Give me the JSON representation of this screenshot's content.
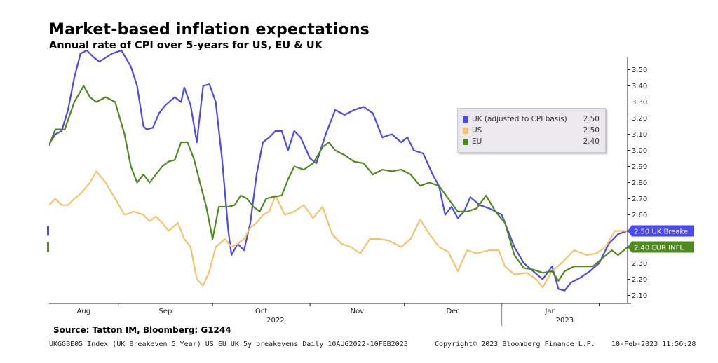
{
  "header": {
    "title": "Market-based inflation expectations",
    "subtitle": "Annual rate of CPI over 5-years for US, EU & UK"
  },
  "legend": {
    "items": [
      {
        "name": "UK (adjusted to CPI basis)",
        "value": "2.50",
        "color": "#4a4aee"
      },
      {
        "name": "US",
        "value": "2.50",
        "color": "#f5c26f"
      },
      {
        "name": "EU",
        "value": "2.40",
        "color": "#4e8a1e"
      }
    ]
  },
  "footer": {
    "source": "Source: Tatton IM, Bloomberg: G1244",
    "ticker": "UKGGBE05 Index (UK Breakeven 5 Year) US EU UK 5y breakevens  Daily 10AUG2022-10FEB2023",
    "copyright": "Copyright© 2023 Bloomberg Finance L.P.",
    "timestamp": "10-Feb-2023 11:56:28"
  },
  "chart_data": {
    "type": "line",
    "title": "Market-based inflation expectations",
    "subtitle": "Annual rate of CPI over 5-years for US, EU & UK",
    "x_range": [
      "2022-08-10",
      "2023-02-10"
    ],
    "x_month_labels": [
      "Aug",
      "Sep",
      "Oct",
      "Nov",
      "Dec",
      "Jan"
    ],
    "x_year_labels": [
      "2022",
      "2023"
    ],
    "ylim": [
      2.05,
      3.55
    ],
    "y_ticks": [
      "3.50",
      "3.40",
      "3.30",
      "3.20",
      "3.10",
      "3.00",
      "2.90",
      "2.80",
      "2.70",
      "2.60",
      "2.50",
      "2.40",
      "2.30",
      "2.20",
      "2.10"
    ],
    "y_axis_side": "right",
    "grid": false,
    "legend_position": "top-right",
    "last_value_tags": [
      {
        "text": "2.50 UK Breake",
        "color": "#4a4aee",
        "value": 2.5
      },
      {
        "text": "2.40 EUR INFL",
        "color": "#4e8a1e",
        "value": 2.4
      }
    ],
    "series": [
      {
        "name": "UK (adjusted to CPI basis)",
        "color": "#4a4aee",
        "points": [
          [
            "2022-08-10",
            3.04
          ],
          [
            "2022-08-12",
            3.1
          ],
          [
            "2022-08-14",
            3.12
          ],
          [
            "2022-08-16",
            3.25
          ],
          [
            "2022-08-18",
            3.45
          ],
          [
            "2022-08-20",
            3.6
          ],
          [
            "2022-08-22",
            3.62
          ],
          [
            "2022-08-24",
            3.58
          ],
          [
            "2022-08-26",
            3.55
          ],
          [
            "2022-08-30",
            3.6
          ],
          [
            "2022-09-02",
            3.62
          ],
          [
            "2022-09-05",
            3.52
          ],
          [
            "2022-09-07",
            3.4
          ],
          [
            "2022-09-09",
            3.15
          ],
          [
            "2022-09-10",
            3.13
          ],
          [
            "2022-09-12",
            3.14
          ],
          [
            "2022-09-14",
            3.23
          ],
          [
            "2022-09-16",
            3.28
          ],
          [
            "2022-09-19",
            3.33
          ],
          [
            "2022-09-21",
            3.3
          ],
          [
            "2022-09-22",
            3.39
          ],
          [
            "2022-09-24",
            3.28
          ],
          [
            "2022-09-26",
            3.05
          ],
          [
            "2022-09-28",
            3.4
          ],
          [
            "2022-09-30",
            3.41
          ],
          [
            "2022-10-02",
            3.3
          ],
          [
            "2022-10-04",
            2.95
          ],
          [
            "2022-10-06",
            2.5
          ],
          [
            "2022-10-07",
            2.35
          ],
          [
            "2022-10-09",
            2.42
          ],
          [
            "2022-10-11",
            2.38
          ],
          [
            "2022-10-13",
            2.55
          ],
          [
            "2022-10-15",
            2.85
          ],
          [
            "2022-10-17",
            3.05
          ],
          [
            "2022-10-19",
            3.08
          ],
          [
            "2022-10-21",
            3.12
          ],
          [
            "2022-10-23",
            3.12
          ],
          [
            "2022-10-25",
            3.0
          ],
          [
            "2022-10-27",
            3.12
          ],
          [
            "2022-10-29",
            3.08
          ],
          [
            "2022-11-01",
            2.95
          ],
          [
            "2022-11-03",
            2.92
          ],
          [
            "2022-11-06",
            3.1
          ],
          [
            "2022-11-09",
            3.25
          ],
          [
            "2022-11-12",
            3.22
          ],
          [
            "2022-11-15",
            3.25
          ],
          [
            "2022-11-18",
            3.27
          ],
          [
            "2022-11-21",
            3.23
          ],
          [
            "2022-11-24",
            3.08
          ],
          [
            "2022-11-27",
            3.1
          ],
          [
            "2022-11-30",
            3.05
          ],
          [
            "2022-12-02",
            3.08
          ],
          [
            "2022-12-04",
            3.0
          ],
          [
            "2022-12-07",
            2.98
          ],
          [
            "2022-12-10",
            2.85
          ],
          [
            "2022-12-12",
            2.78
          ],
          [
            "2022-12-14",
            2.6
          ],
          [
            "2022-12-16",
            2.65
          ],
          [
            "2022-12-18",
            2.58
          ],
          [
            "2022-12-20",
            2.62
          ],
          [
            "2022-12-22",
            2.71
          ],
          [
            "2022-12-25",
            2.66
          ],
          [
            "2022-12-28",
            2.64
          ],
          [
            "2023-01-01",
            2.6
          ],
          [
            "2023-01-03",
            2.5
          ],
          [
            "2023-01-05",
            2.4
          ],
          [
            "2023-01-08",
            2.3
          ],
          [
            "2023-01-11",
            2.25
          ],
          [
            "2023-01-14",
            2.2
          ],
          [
            "2023-01-17",
            2.28
          ],
          [
            "2023-01-19",
            2.14
          ],
          [
            "2023-01-21",
            2.13
          ],
          [
            "2023-01-23",
            2.18
          ],
          [
            "2023-01-26",
            2.21
          ],
          [
            "2023-01-29",
            2.25
          ],
          [
            "2023-02-01",
            2.3
          ],
          [
            "2023-02-04",
            2.42
          ],
          [
            "2023-02-07",
            2.48
          ],
          [
            "2023-02-10",
            2.5
          ]
        ]
      },
      {
        "name": "US",
        "color": "#f5c26f",
        "points": [
          [
            "2022-08-10",
            2.66
          ],
          [
            "2022-08-12",
            2.7
          ],
          [
            "2022-08-14",
            2.66
          ],
          [
            "2022-08-16",
            2.66
          ],
          [
            "2022-08-18",
            2.7
          ],
          [
            "2022-08-20",
            2.73
          ],
          [
            "2022-08-23",
            2.8
          ],
          [
            "2022-08-25",
            2.87
          ],
          [
            "2022-08-28",
            2.8
          ],
          [
            "2022-08-31",
            2.7
          ],
          [
            "2022-09-03",
            2.6
          ],
          [
            "2022-09-06",
            2.62
          ],
          [
            "2022-09-09",
            2.6
          ],
          [
            "2022-09-11",
            2.56
          ],
          [
            "2022-09-13",
            2.59
          ],
          [
            "2022-09-15",
            2.55
          ],
          [
            "2022-09-17",
            2.5
          ],
          [
            "2022-09-20",
            2.55
          ],
          [
            "2022-09-22",
            2.45
          ],
          [
            "2022-09-24",
            2.4
          ],
          [
            "2022-09-26",
            2.2
          ],
          [
            "2022-09-28",
            2.16
          ],
          [
            "2022-09-30",
            2.25
          ],
          [
            "2022-10-02",
            2.4
          ],
          [
            "2022-10-05",
            2.45
          ],
          [
            "2022-10-07",
            2.4
          ],
          [
            "2022-10-09",
            2.42
          ],
          [
            "2022-10-11",
            2.45
          ],
          [
            "2022-10-13",
            2.52
          ],
          [
            "2022-10-15",
            2.55
          ],
          [
            "2022-10-17",
            2.6
          ],
          [
            "2022-10-19",
            2.62
          ],
          [
            "2022-10-21",
            2.72
          ],
          [
            "2022-10-24",
            2.6
          ],
          [
            "2022-10-27",
            2.62
          ],
          [
            "2022-10-30",
            2.66
          ],
          [
            "2022-11-02",
            2.58
          ],
          [
            "2022-11-05",
            2.65
          ],
          [
            "2022-11-08",
            2.48
          ],
          [
            "2022-11-11",
            2.42
          ],
          [
            "2022-11-14",
            2.4
          ],
          [
            "2022-11-17",
            2.36
          ],
          [
            "2022-11-20",
            2.45
          ],
          [
            "2022-11-23",
            2.45
          ],
          [
            "2022-11-26",
            2.44
          ],
          [
            "2022-11-30",
            2.4
          ],
          [
            "2022-12-03",
            2.45
          ],
          [
            "2022-12-06",
            2.57
          ],
          [
            "2022-12-09",
            2.48
          ],
          [
            "2022-12-12",
            2.4
          ],
          [
            "2022-12-15",
            2.37
          ],
          [
            "2022-12-18",
            2.25
          ],
          [
            "2022-12-21",
            2.38
          ],
          [
            "2022-12-24",
            2.36
          ],
          [
            "2022-12-28",
            2.38
          ],
          [
            "2022-12-31",
            2.38
          ],
          [
            "2023-01-02",
            2.28
          ],
          [
            "2023-01-05",
            2.23
          ],
          [
            "2023-01-09",
            2.24
          ],
          [
            "2023-01-12",
            2.2
          ],
          [
            "2023-01-14",
            2.15
          ],
          [
            "2023-01-17",
            2.25
          ],
          [
            "2023-01-20",
            2.3
          ],
          [
            "2023-01-24",
            2.38
          ],
          [
            "2023-01-28",
            2.35
          ],
          [
            "2023-01-31",
            2.36
          ],
          [
            "2023-02-03",
            2.4
          ],
          [
            "2023-02-06",
            2.5
          ],
          [
            "2023-02-10",
            2.5
          ]
        ]
      },
      {
        "name": "EU",
        "color": "#4e8a1e",
        "points": [
          [
            "2022-08-10",
            3.03
          ],
          [
            "2022-08-12",
            3.13
          ],
          [
            "2022-08-15",
            3.13
          ],
          [
            "2022-08-18",
            3.3
          ],
          [
            "2022-08-21",
            3.4
          ],
          [
            "2022-08-23",
            3.33
          ],
          [
            "2022-08-25",
            3.3
          ],
          [
            "2022-08-28",
            3.33
          ],
          [
            "2022-08-31",
            3.3
          ],
          [
            "2022-09-03",
            3.1
          ],
          [
            "2022-09-05",
            2.9
          ],
          [
            "2022-09-07",
            2.8
          ],
          [
            "2022-09-09",
            2.85
          ],
          [
            "2022-09-11",
            2.8
          ],
          [
            "2022-09-13",
            2.85
          ],
          [
            "2022-09-15",
            2.9
          ],
          [
            "2022-09-17",
            2.93
          ],
          [
            "2022-09-19",
            2.94
          ],
          [
            "2022-09-21",
            3.05
          ],
          [
            "2022-09-23",
            3.05
          ],
          [
            "2022-09-25",
            2.95
          ],
          [
            "2022-09-27",
            2.8
          ],
          [
            "2022-09-29",
            2.65
          ],
          [
            "2022-10-01",
            2.45
          ],
          [
            "2022-10-03",
            2.65
          ],
          [
            "2022-10-06",
            2.65
          ],
          [
            "2022-10-08",
            2.66
          ],
          [
            "2022-10-10",
            2.72
          ],
          [
            "2022-10-12",
            2.7
          ],
          [
            "2022-10-14",
            2.65
          ],
          [
            "2022-10-16",
            2.62
          ],
          [
            "2022-10-18",
            2.7
          ],
          [
            "2022-10-20",
            2.71
          ],
          [
            "2022-10-23",
            2.72
          ],
          [
            "2022-10-25",
            2.82
          ],
          [
            "2022-10-27",
            2.9
          ],
          [
            "2022-10-30",
            2.88
          ],
          [
            "2022-11-02",
            2.92
          ],
          [
            "2022-11-05",
            3.02
          ],
          [
            "2022-11-07",
            3.05
          ],
          [
            "2022-11-09",
            3.0
          ],
          [
            "2022-11-12",
            2.97
          ],
          [
            "2022-11-15",
            2.93
          ],
          [
            "2022-11-18",
            2.92
          ],
          [
            "2022-11-21",
            2.85
          ],
          [
            "2022-11-24",
            2.88
          ],
          [
            "2022-11-27",
            2.87
          ],
          [
            "2022-11-30",
            2.88
          ],
          [
            "2022-12-03",
            2.85
          ],
          [
            "2022-12-06",
            2.78
          ],
          [
            "2022-12-09",
            2.8
          ],
          [
            "2022-12-12",
            2.78
          ],
          [
            "2022-12-15",
            2.7
          ],
          [
            "2022-12-18",
            2.62
          ],
          [
            "2022-12-21",
            2.62
          ],
          [
            "2022-12-24",
            2.64
          ],
          [
            "2022-12-27",
            2.72
          ],
          [
            "2022-12-30",
            2.62
          ],
          [
            "2023-01-02",
            2.55
          ],
          [
            "2023-01-05",
            2.35
          ],
          [
            "2023-01-08",
            2.27
          ],
          [
            "2023-01-11",
            2.26
          ],
          [
            "2023-01-14",
            2.24
          ],
          [
            "2023-01-17",
            2.25
          ],
          [
            "2023-01-19",
            2.19
          ],
          [
            "2023-01-21",
            2.25
          ],
          [
            "2023-01-24",
            2.28
          ],
          [
            "2023-01-27",
            2.28
          ],
          [
            "2023-01-30",
            2.28
          ],
          [
            "2023-02-02",
            2.33
          ],
          [
            "2023-02-05",
            2.38
          ],
          [
            "2023-02-07",
            2.35
          ],
          [
            "2023-02-10",
            2.4
          ]
        ]
      }
    ]
  }
}
